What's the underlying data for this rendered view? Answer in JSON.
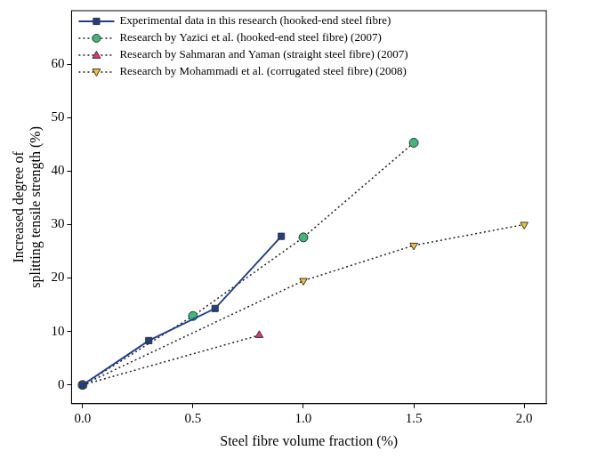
{
  "chart_data": {
    "type": "line",
    "x_label": "Steel fibre volume fraction (%)",
    "y_label": [
      "Increased degree of",
      "splitting tensile strength (%)"
    ],
    "xlim": [
      -0.05,
      2.1
    ],
    "xticks": [
      {
        "value": 0,
        "label": "0.0"
      },
      0.5,
      {
        "value": 1,
        "label": "1.0"
      },
      1.5,
      {
        "value": 2,
        "label": "2.0"
      }
    ],
    "ylim": [
      -3.5,
      70
    ],
    "yticks": [
      0,
      10,
      20,
      30,
      40,
      50,
      60
    ],
    "grid": false,
    "legend": "top left",
    "series": [
      {
        "name": "Experimental data in this research (hooked-end steel fibre)",
        "color": "#1f3f8c",
        "marker": "square",
        "line_style": "solid",
        "x": [
          0,
          0.3,
          0.6,
          0.9
        ],
        "values": [
          0,
          8.3,
          14.3,
          27.8
        ]
      },
      {
        "name": "Research by Yazici et al. (hooked-end steel fibre) (2007)",
        "color": "#3cb878",
        "marker": "circle",
        "line_style": "dotted",
        "x": [
          0,
          0.5,
          1.0,
          1.5
        ],
        "values": [
          0,
          12.9,
          27.6,
          45.3
        ]
      },
      {
        "name": "Research by Sahmaran and Yaman (straight steel fibre) (2007)",
        "color": "#e8336d",
        "marker": "triangle",
        "line_style": "dotted",
        "x": [
          0,
          0.8
        ],
        "values": [
          0,
          9.3
        ]
      },
      {
        "name": "Research by Mohammadi et al. (corrugated steel fibre) (2008)",
        "color": "#f5c030",
        "marker": "triangle_down",
        "line_style": "dotted",
        "x": [
          0,
          1.0,
          1.5,
          2.0
        ],
        "values": [
          0,
          19.5,
          26.1,
          30.0
        ]
      }
    ]
  }
}
